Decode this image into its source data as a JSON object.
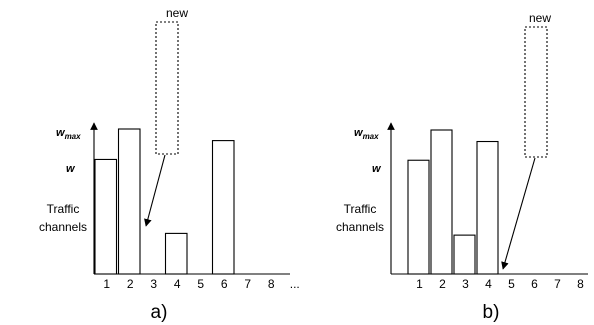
{
  "labels": {
    "w_max_base": "w",
    "w_max_sub": "max",
    "w": "w",
    "channels_line1": "Traffic",
    "channels_line2": "channels",
    "new": "new"
  },
  "panels": [
    {
      "id": "a",
      "label": "a)",
      "ticks": [
        "1",
        "2",
        "3",
        "4",
        "5",
        "6",
        "7",
        "8",
        "..."
      ],
      "bars": [
        {
          "channel": "1",
          "level": 0.79
        },
        {
          "channel": "2",
          "level": 1.0
        },
        {
          "channel": "4",
          "level": 0.28
        },
        {
          "channel": "6",
          "level": 0.92
        }
      ],
      "new_box_over": "4",
      "arrow_to": "4"
    },
    {
      "id": "b",
      "label": "b)",
      "ticks": [
        "1",
        "2",
        "3",
        "4",
        "5",
        "6",
        "7",
        "8",
        "..."
      ],
      "bars": [
        {
          "channel": "1",
          "level": 0.79
        },
        {
          "channel": "2",
          "level": 1.0
        },
        {
          "channel": "3",
          "level": 0.27
        },
        {
          "channel": "4",
          "level": 0.92
        }
      ],
      "new_box_over": "6",
      "arrow_to": "5"
    }
  ]
}
